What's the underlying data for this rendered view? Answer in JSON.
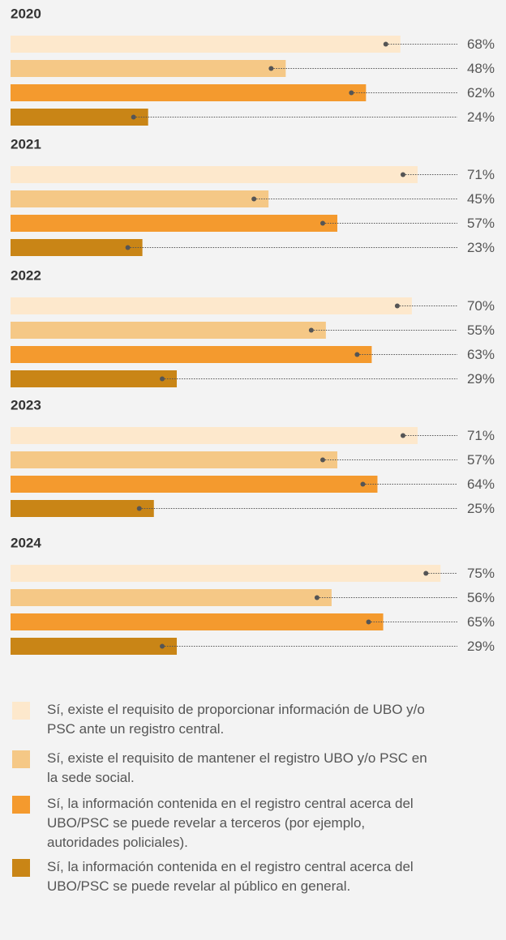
{
  "chart_data": {
    "type": "bar",
    "orientation": "horizontal",
    "categories": [
      "2020",
      "2021",
      "2022",
      "2023",
      "2024"
    ],
    "series": [
      {
        "name": "Sí, existe el requisito de proporcionar información de UBO y/o PSC ante un registro central.",
        "color": "#fde8cc",
        "values": [
          68,
          71,
          70,
          71,
          75
        ],
        "value_labels": [
          "68%",
          "71%",
          "70%",
          "71%",
          "75%"
        ]
      },
      {
        "name": "Sí, existe el requisito de mantener el registro UBO y/o PSC en la sede social.",
        "color": "#f5c886",
        "values": [
          48,
          45,
          55,
          57,
          56
        ],
        "value_labels": [
          "48%",
          "45%",
          "55%",
          "57%",
          "56%"
        ]
      },
      {
        "name": "Sí, la información contenida en el registro central acerca del UBO/PSC se puede revelar a terceros (por ejemplo, autoridades policiales).",
        "color": "#f49a2e",
        "values": [
          62,
          57,
          63,
          64,
          65
        ],
        "value_labels": [
          "62%",
          "57%",
          "63%",
          "64%",
          "65%"
        ]
      },
      {
        "name": "Sí, la información contenida en el registro central acerca del UBO/PSC se puede revelar al público en general.",
        "color": "#c98516",
        "values": [
          24,
          23,
          29,
          25,
          29
        ],
        "value_labels": [
          "24%",
          "23%",
          "29%",
          "25%",
          "29%"
        ]
      }
    ]
  }
}
